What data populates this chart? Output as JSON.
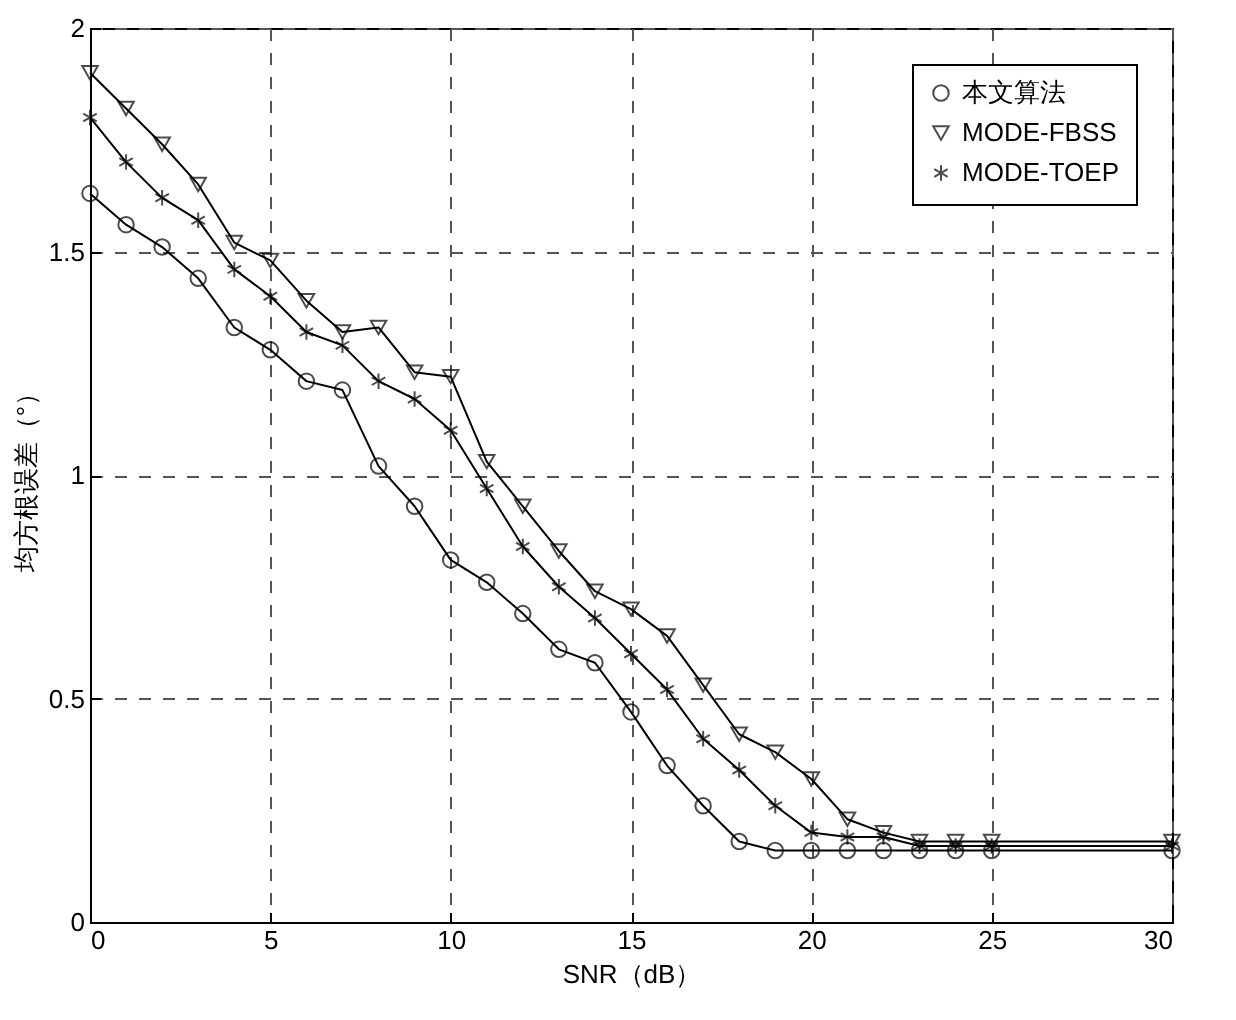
{
  "chart_data": {
    "type": "line",
    "xlabel": "SNR（dB）",
    "ylabel": "均方根误差（°）",
    "x": [
      0,
      1,
      2,
      3,
      4,
      5,
      6,
      7,
      8,
      9,
      10,
      11,
      12,
      13,
      14,
      15,
      16,
      17,
      18,
      19,
      20,
      21,
      22,
      23,
      24,
      25,
      30
    ],
    "series": [
      {
        "name": "本文算法",
        "color": "#000000",
        "marker": "circle",
        "values": [
          1.63,
          1.56,
          1.51,
          1.44,
          1.33,
          1.28,
          1.21,
          1.19,
          1.02,
          0.93,
          0.81,
          0.76,
          0.69,
          0.61,
          0.58,
          0.47,
          0.35,
          0.26,
          0.18,
          0.16,
          0.16,
          0.16,
          0.16,
          0.16,
          0.16,
          0.16,
          0.16
        ]
      },
      {
        "name": "MODE-FBSS",
        "color": "#000000",
        "marker": "triangle",
        "values": [
          1.9,
          1.82,
          1.74,
          1.65,
          1.52,
          1.48,
          1.39,
          1.32,
          1.33,
          1.23,
          1.22,
          1.03,
          0.93,
          0.83,
          0.74,
          0.7,
          0.64,
          0.53,
          0.42,
          0.38,
          0.32,
          0.23,
          0.2,
          0.18,
          0.18,
          0.18,
          0.18
        ]
      },
      {
        "name": "MODE-TOEP",
        "color": "#000000",
        "marker": "cross",
        "values": [
          1.8,
          1.7,
          1.62,
          1.57,
          1.46,
          1.4,
          1.32,
          1.29,
          1.21,
          1.17,
          1.1,
          0.97,
          0.84,
          0.75,
          0.68,
          0.6,
          0.52,
          0.41,
          0.34,
          0.26,
          0.2,
          0.19,
          0.19,
          0.17,
          0.17,
          0.17,
          0.17
        ]
      }
    ],
    "xlim": [
      0,
      30
    ],
    "xticks": [
      0,
      5,
      10,
      15,
      20,
      25,
      30
    ],
    "ylim": [
      0,
      2
    ],
    "yticks": [
      0,
      0.5,
      1,
      1.5,
      2
    ],
    "grid": true,
    "legend": "top right",
    "line_style": "solid"
  }
}
